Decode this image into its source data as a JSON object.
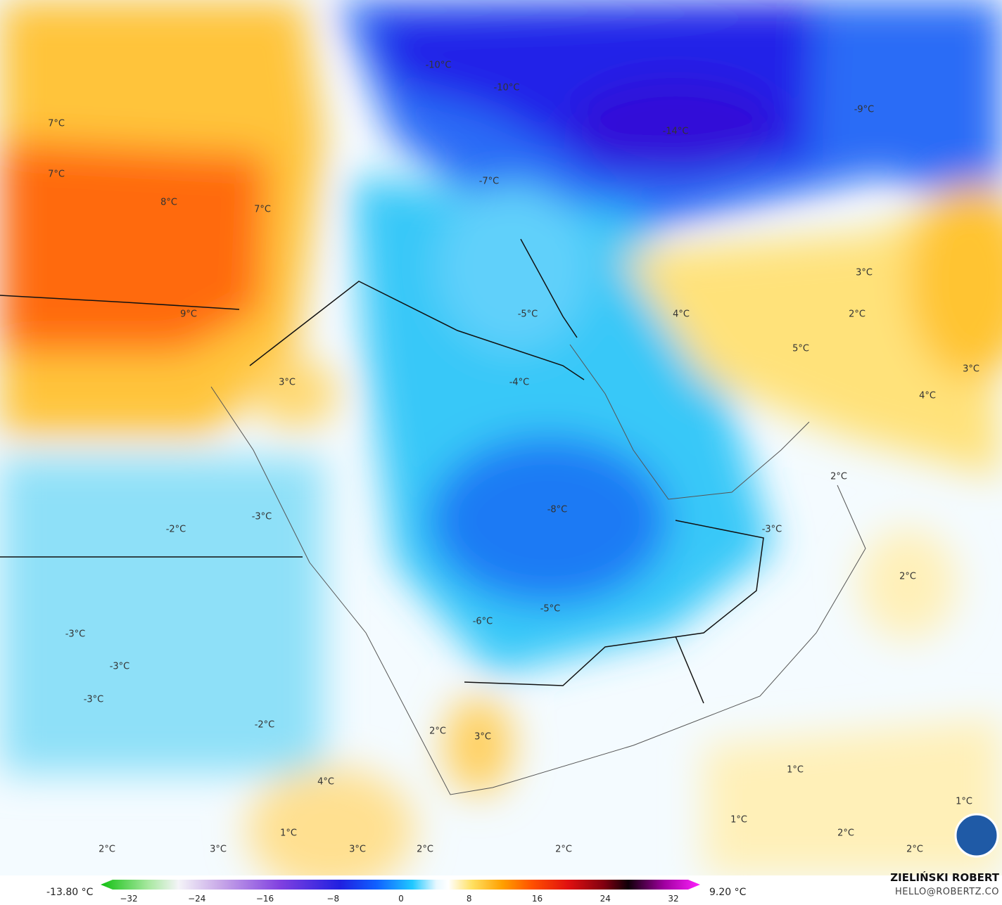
{
  "map_labels": [
    "-10°C",
    "-10°C",
    "-9°C",
    "-14°C",
    "7°C",
    "7°C",
    "8°C",
    "7°C",
    "9°C",
    "-7°C",
    "3°C",
    "4°C",
    "2°C",
    "-5°C",
    "5°C",
    "3°C",
    "4°C",
    "-4°C",
    "3°C",
    "2°C",
    "-8°C",
    "-3°C",
    "-2°C",
    "-3°C",
    "2°C",
    "-5°C",
    "-6°C",
    "-3°C",
    "-3°C",
    "-3°C",
    "-2°C",
    "2°C",
    "3°C",
    "1°C",
    "4°C",
    "1°C",
    "1°C",
    "1°C",
    "2°C",
    "2°C",
    "3°C",
    "3°C",
    "2°C",
    "2°C",
    "2°C"
  ],
  "colorbar": {
    "min_label": "-13.80 °C",
    "max_label": "9.20 °C",
    "ticks": [
      "−32",
      "−24",
      "−16",
      "−8",
      "0",
      "8",
      "16",
      "24",
      "32"
    ]
  },
  "credits": {
    "name": "ZIELIŃSKI ROBERT",
    "email": "HELLO@ROBERTZ.CO"
  }
}
